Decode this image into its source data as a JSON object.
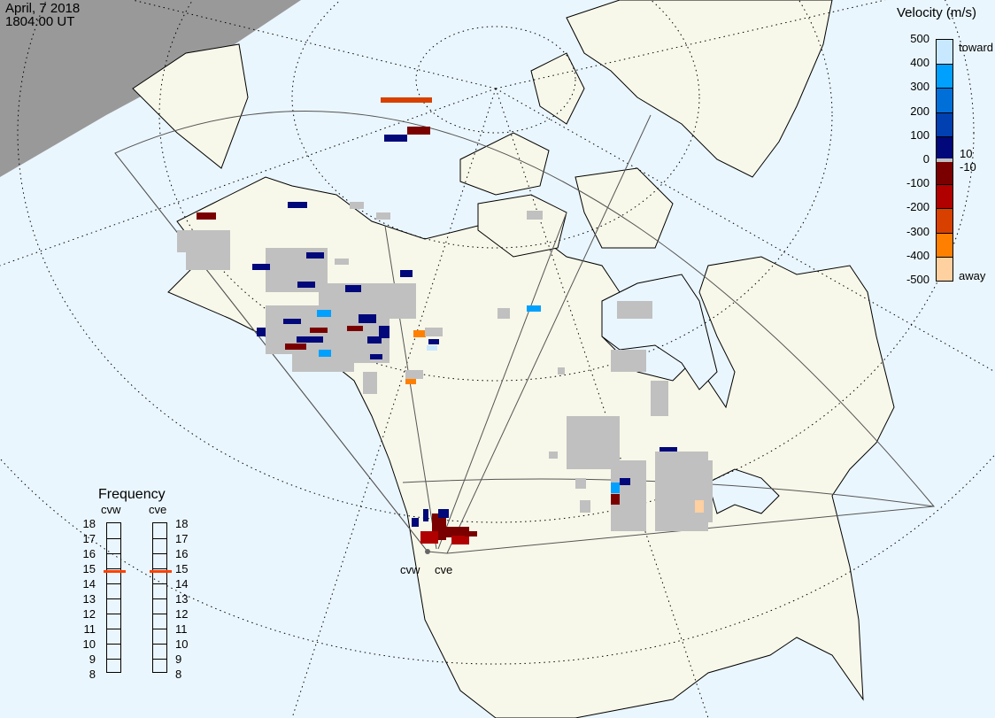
{
  "header": {
    "date": "April, 7 2018",
    "time": "1804:00 UT"
  },
  "colorbar": {
    "title": "Velocity (m/s)",
    "ticks": [
      "500",
      "400",
      "300",
      "200",
      "100",
      "0",
      "-100",
      "-200",
      "-300",
      "-400",
      "-500"
    ],
    "toward_label": "toward",
    "away_label": "away",
    "ground_scatter_hi": "10",
    "ground_scatter_lo": "-10",
    "colors": [
      "#c8e8ff",
      "#00a0ff",
      "#0070d8",
      "#0040b0",
      "#00087a",
      "#7a0000",
      "#b00000",
      "#d84000",
      "#ff8000",
      "#ffd0a0"
    ],
    "ground_scatter_color": "#c0c0c0"
  },
  "frequency": {
    "title": "Frequency",
    "radars": [
      {
        "name": "cvw",
        "value_mhz": 14.8
      },
      {
        "name": "cve",
        "value_mhz": 14.8
      }
    ],
    "ticks": [
      "18",
      "17",
      "16",
      "15",
      "14",
      "13",
      "12",
      "11",
      "10",
      "9",
      "8"
    ],
    "marker_color": "#ff4000"
  },
  "map": {
    "stations": [
      "cvw",
      "cve"
    ],
    "land_color": "#f8f8ea",
    "ocean_color": "#eaf6fe",
    "night_color": "#999999"
  }
}
